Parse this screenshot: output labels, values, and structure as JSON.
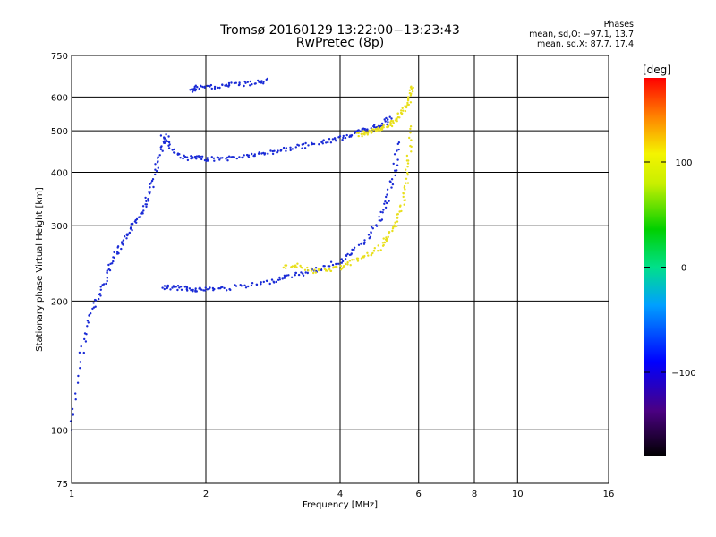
{
  "header": {
    "title_line1": "Tromsø 20160129 13:22:00−13:23:43",
    "title_line2": "RwPretec (8p)",
    "phases_title": "Phases",
    "phases_o": "mean, sd,O: −97.1, 13.7",
    "phases_x": "mean, sd,X:  87.7, 17.4"
  },
  "chart_data": {
    "type": "scatter",
    "title": "Tromsø 20160129 13:22:00−13:23:43",
    "subtitle": "RwPretec (8p)",
    "xlabel": "Frequency [MHz]",
    "ylabel": "Stationary phase Virtual Height [km]",
    "xscale": "log",
    "yscale": "log",
    "xlim": [
      1,
      16
    ],
    "ylim": [
      75,
      750
    ],
    "x_ticks": [
      1,
      2,
      4,
      6,
      8,
      10,
      16
    ],
    "x_tick_labels": [
      "1",
      "2",
      "4",
      "6",
      "8",
      "10",
      "16"
    ],
    "y_ticks": [
      75,
      100,
      200,
      300,
      400,
      500,
      600,
      750
    ],
    "y_tick_labels": [
      "75",
      "100",
      "200",
      "300",
      "400",
      "500",
      "600",
      "750"
    ],
    "grid": true,
    "colorbar": {
      "label": "[deg]",
      "range": [
        -180,
        180
      ],
      "ticks": [
        100,
        0,
        -100
      ],
      "tick_labels": [
        "100",
        "0",
        "−100"
      ]
    },
    "series": [
      {
        "color": "#1a2bd6",
        "phase_deg": -97,
        "traces": [
          {
            "x": [
              1.0,
              1.05,
              1.1,
              1.15,
              1.2,
              1.25,
              1.3,
              1.35,
              1.4,
              1.45,
              1.5,
              1.55,
              1.6,
              1.65
            ],
            "y": [
              100,
              150,
              185,
              205,
              230,
              255,
              270,
              290,
              310,
              330,
              360,
              410,
              460,
              490
            ]
          },
          {
            "x": [
              1.6,
              1.7,
              1.8,
              1.9,
              2.0,
              2.2,
              2.4,
              2.6,
              2.8,
              3.0,
              3.3,
              3.6,
              3.9,
              4.2,
              4.5,
              4.8,
              5.0,
              5.2
            ],
            "y": [
              490,
              445,
              432,
              432,
              430,
              430,
              435,
              440,
              445,
              452,
              460,
              468,
              478,
              488,
              500,
              510,
              520,
              540
            ]
          },
          {
            "x": [
              1.6,
              1.7,
              1.8,
              1.9,
              2.0,
              2.2,
              2.5,
              2.8,
              3.0,
              3.3,
              3.6,
              4.0,
              4.3,
              4.6,
              4.9,
              5.1,
              5.3,
              5.4
            ],
            "y": [
              215,
              215,
              214,
              213,
              213,
              214,
              217,
              222,
              228,
              232,
              238,
              248,
              262,
              280,
              310,
              345,
              400,
              480
            ]
          },
          {
            "x": [
              1.85,
              1.9,
              2.05,
              2.2,
              2.4,
              2.6,
              2.75
            ],
            "y": [
              620,
              630,
              632,
              638,
              643,
              648,
              655
            ]
          }
        ]
      },
      {
        "color": "#e8df1c",
        "phase_deg": 88,
        "traces": [
          {
            "x": [
              3.0,
              3.2,
              3.5,
              3.8,
              4.0,
              4.3,
              4.6,
              4.9,
              5.1,
              5.3,
              5.5,
              5.6,
              5.7,
              5.75
            ],
            "y": [
              240,
              243,
              235,
              236,
              240,
              248,
              255,
              265,
              280,
              300,
              330,
              370,
              430,
              520
            ]
          },
          {
            "x": [
              4.4,
              4.6,
              4.8,
              5.0,
              5.2,
              5.4,
              5.6,
              5.75,
              5.8
            ],
            "y": [
              490,
              495,
              500,
              505,
              520,
              540,
              565,
              600,
              640
            ]
          }
        ]
      }
    ]
  }
}
